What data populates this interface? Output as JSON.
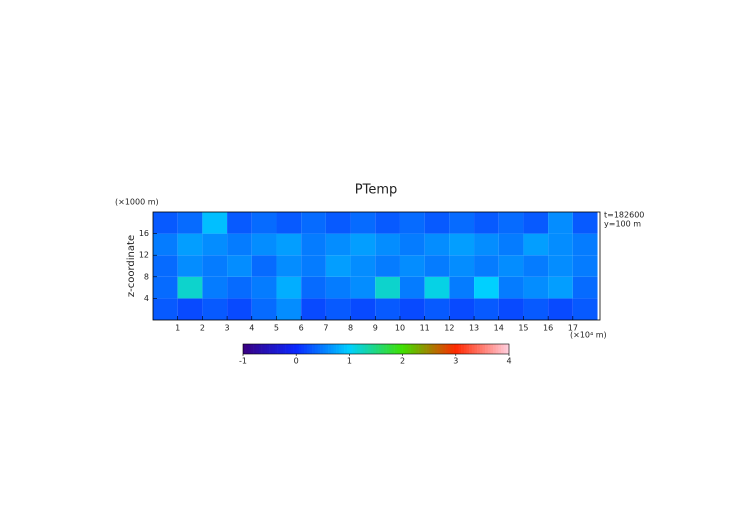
{
  "chart_data": {
    "type": "heatmap",
    "title": "PTemp",
    "y_label": "z-coordinate",
    "y_unit": "(×1000 m)",
    "x_unit": "(×10⁴ m)",
    "annotations": [
      "t=182600",
      "y=100 m"
    ],
    "x_edges": [
      0,
      1,
      2,
      3,
      4,
      5,
      6,
      7,
      8,
      9,
      10,
      11,
      12,
      13,
      14,
      15,
      16,
      17,
      18
    ],
    "y_edges": [
      0,
      4,
      8,
      12,
      16,
      20
    ],
    "z": [
      [
        0.3,
        0.2,
        0.3,
        0.2,
        0.4,
        0.6,
        0.2,
        0.3,
        0.2,
        0.3,
        0.2,
        0.3,
        0.2,
        0.3,
        0.2,
        0.3,
        0.2,
        0.3
      ],
      [
        0.4,
        1.2,
        0.5,
        0.4,
        0.5,
        0.8,
        0.4,
        0.5,
        0.6,
        1.2,
        0.5,
        1.1,
        0.5,
        1.0,
        0.5,
        0.6,
        0.7,
        0.4
      ],
      [
        0.4,
        0.6,
        0.5,
        0.6,
        0.4,
        0.6,
        0.5,
        0.7,
        0.6,
        0.5,
        0.6,
        0.5,
        0.6,
        0.5,
        0.6,
        0.5,
        0.6,
        0.5
      ],
      [
        0.5,
        0.7,
        0.6,
        0.5,
        0.6,
        0.7,
        0.5,
        0.6,
        0.7,
        0.6,
        0.5,
        0.6,
        0.7,
        0.6,
        0.5,
        0.7,
        0.6,
        0.5
      ],
      [
        0.3,
        0.4,
        0.9,
        0.3,
        0.4,
        0.3,
        0.4,
        0.3,
        0.4,
        0.3,
        0.4,
        0.3,
        0.4,
        0.3,
        0.4,
        0.3,
        0.6,
        0.3
      ]
    ],
    "xlim": [
      0,
      18.1
    ],
    "xticks": [
      1,
      2,
      3,
      4,
      5,
      6,
      7,
      8,
      9,
      10,
      11,
      12,
      13,
      14,
      15,
      16,
      17
    ],
    "ylim": [
      0,
      20
    ],
    "yticks": [
      4,
      8,
      12,
      16
    ],
    "clim": [
      -1,
      4
    ],
    "cticks": [
      -1,
      0,
      1,
      2,
      3,
      4
    ],
    "colorscale": [
      "#3a0080",
      "#0a28ff",
      "#00d0ff",
      "#40e000",
      "#ff2800",
      "#ffd0e0"
    ]
  }
}
